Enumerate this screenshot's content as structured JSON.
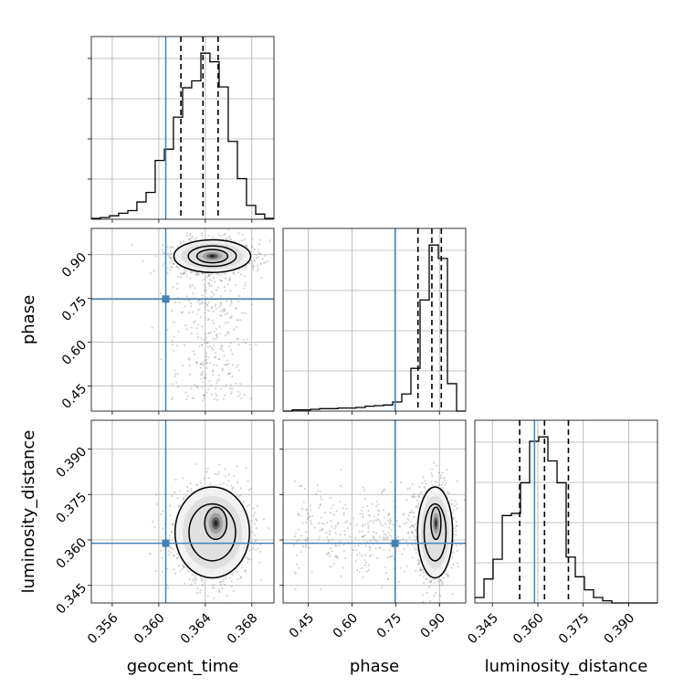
{
  "chart_data": {
    "type": "corner",
    "parameters": [
      "geocent_time",
      "phase",
      "luminosity_distance"
    ],
    "axis_labels": {
      "geocent_time": "geocent_time",
      "phase": "phase",
      "luminosity_distance": "luminosity_distance"
    },
    "ranges": {
      "geocent_time": [
        0.3542,
        0.3699
      ],
      "phase": [
        0.364,
        0.99
      ],
      "luminosity_distance": [
        0.3392,
        0.3995
      ]
    },
    "ticks": {
      "geocent_time": [
        "0.356",
        "0.360",
        "0.364",
        "0.368"
      ],
      "phase": [
        "0.45",
        "0.60",
        "0.75",
        "0.90"
      ],
      "luminosity_distance": [
        "0.345",
        "0.360",
        "0.375",
        "0.390"
      ]
    },
    "truths": {
      "geocent_time": 0.3606,
      "phase": 0.748,
      "luminosity_distance": 0.3589
    },
    "truth_color": "#4682b4",
    "grid": true,
    "histograms": {
      "geocent_time": {
        "edges": [
          0.3542,
          0.35498,
          0.35577,
          0.35655,
          0.35734,
          0.35812,
          0.35891,
          0.35969,
          0.36048,
          0.36126,
          0.36205,
          0.36283,
          0.36362,
          0.3644,
          0.36519,
          0.36597,
          0.36676,
          0.36754,
          0.36833,
          0.36911,
          0.3699
        ],
        "counts": [
          1,
          2,
          4,
          7,
          10,
          20,
          31,
          68,
          81,
          118,
          152,
          160,
          192,
          182,
          153,
          90,
          47,
          16,
          6,
          1
        ],
        "quantiles": [
          0.3619,
          0.3638,
          0.3651
        ]
      },
      "phase": {
        "edges": [
          0.364,
          0.3953,
          0.4266,
          0.4579,
          0.4892,
          0.5205,
          0.5518,
          0.5831,
          0.6144,
          0.6457,
          0.677,
          0.7083,
          0.7396,
          0.7709,
          0.8022,
          0.8335,
          0.8648,
          0.8961,
          0.9274,
          0.9587,
          0.99
        ],
        "counts": [
          0,
          2,
          2,
          3,
          4,
          4,
          5,
          5,
          6,
          8,
          9,
          10,
          15,
          28,
          70,
          182,
          272,
          250,
          45,
          0
        ],
        "quantiles": [
          0.8264,
          0.874,
          0.9064
        ]
      },
      "luminosity_distance": {
        "edges": [
          0.3392,
          0.34222,
          0.34523,
          0.34825,
          0.35126,
          0.35428,
          0.35729,
          0.36031,
          0.36332,
          0.36634,
          0.36935,
          0.37237,
          0.37538,
          0.3784,
          0.38141,
          0.38443,
          0.38744,
          0.39046,
          0.39347,
          0.39649,
          0.3995
        ],
        "counts": [
          5,
          22,
          40,
          80,
          82,
          110,
          148,
          152,
          130,
          110,
          42,
          24,
          12,
          5,
          2,
          0,
          0,
          0,
          0,
          0
        ],
        "quantiles": [
          0.354,
          0.3622,
          0.3701
        ]
      }
    }
  }
}
